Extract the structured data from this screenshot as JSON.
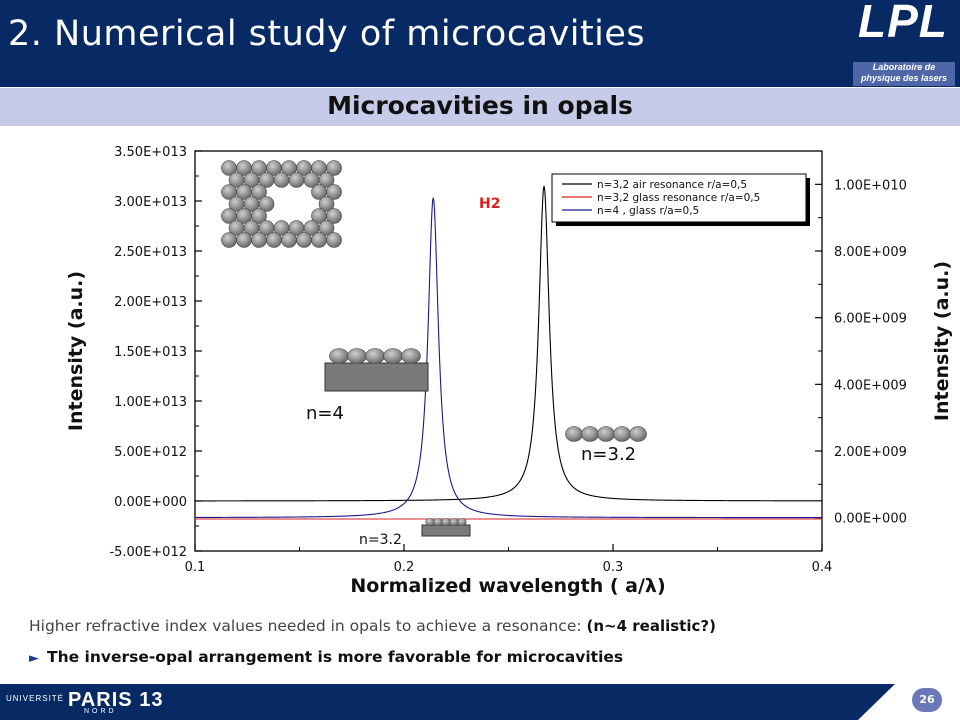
{
  "header": {
    "title": "2. Numerical study of microcavities",
    "logo_text": "LPL",
    "logo_sub_line1": "Laboratoire de",
    "logo_sub_line2": "physique des lasers"
  },
  "subtitle": "Microcavities in opals",
  "chart_data": {
    "type": "line",
    "xlabel": "Normalized wavelength ( a/λ)",
    "ylabel_left": "Intensity (a.u.)",
    "ylabel_right": "Intensity (a.u.)",
    "xlim": [
      0.1,
      0.4
    ],
    "ylim_left": [
      -5000000000000.0,
      35000000000000.0
    ],
    "ylim_right": [
      -1000000000.0,
      11000000000.0
    ],
    "x_ticks": [
      "0.1",
      "0.2",
      "0.3",
      "0.4"
    ],
    "y_ticks_left": [
      "3.50E+013",
      "3.00E+013",
      "2.50E+013",
      "2.00E+013",
      "1.50E+013",
      "1.00E+013",
      "5.00E+012",
      "0.00E+000",
      "-5.00E+012"
    ],
    "y_ticks_right": [
      "1.00E+010",
      "8.00E+009",
      "6.00E+009",
      "4.00E+009",
      "2.00E+009",
      "0.00E+000"
    ],
    "legend_position": "top-right",
    "series": [
      {
        "name": "n=3,2 air resonance r/a=0,5",
        "axis": "left",
        "color": "#000000",
        "baseline": 0,
        "peak_x": 0.267,
        "peak_y": 31500000000000.0,
        "width": 0.003
      },
      {
        "name": "n=3,2 glass resonance r/a=0,5",
        "axis": "left",
        "color": "#d62020",
        "baseline": -1800000000000.0,
        "peak_x": 0.25,
        "peak_y": -1800000000000.0,
        "width": 0.003
      },
      {
        "name": "n=4 , glass  r/a=0,5",
        "axis": "right",
        "color": "#1a1a8c",
        "baseline": 0,
        "peak_x": 0.214,
        "peak_y": 9600000000.0,
        "width": 0.003
      }
    ],
    "annotations": {
      "h2": "H2",
      "n4": "n=4",
      "n32_right": "n=3.2",
      "n32_bottom": "n=3.2"
    }
  },
  "notes": {
    "line1": "Higher refractive index values  needed in opals to achieve a resonance: ",
    "line1_bold": "(n~4 realistic?)",
    "line2_arrow": "►",
    "line2": "The inverse-opal arrangement is more favorable for microcavities"
  },
  "footer": {
    "univ": "UNIVERSITÉ",
    "paris": "PARIS 13",
    "nord": "NORD",
    "page": "26"
  },
  "colors": {
    "header_bg": "#082a64",
    "subtitle_bar": "#c6cbe9",
    "page_badge": "#6a77b8"
  }
}
